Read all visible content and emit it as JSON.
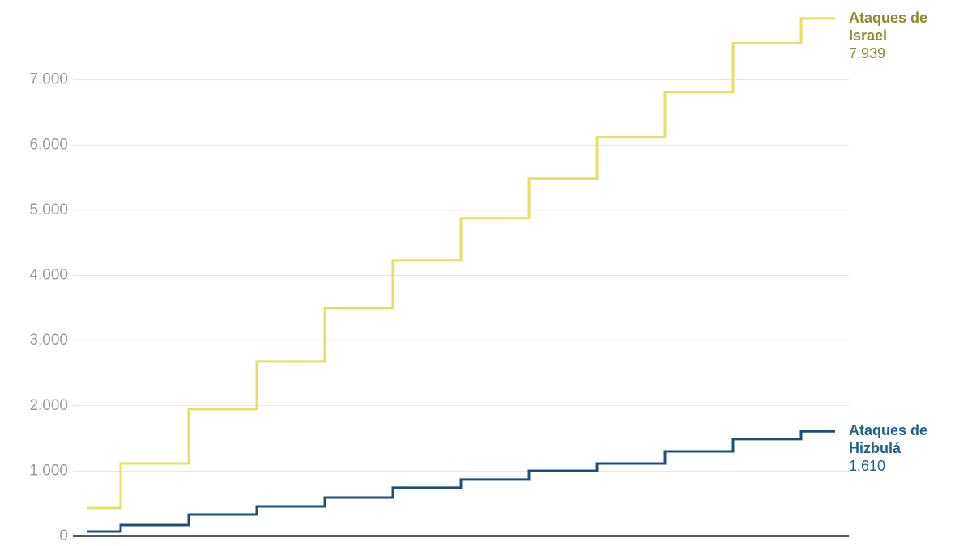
{
  "chart_data": {
    "type": "line",
    "step": "mid",
    "ylim": [
      0,
      8000
    ],
    "yticks": [
      0,
      {
        "value": 1000,
        "label": "1.000"
      },
      {
        "value": 2000,
        "label": "2.000"
      },
      {
        "value": 3000,
        "label": "3.000"
      },
      {
        "value": 4000,
        "label": "4.000"
      },
      {
        "value": 5000,
        "label": "5.000"
      },
      {
        "value": 6000,
        "label": "6.000"
      },
      {
        "value": 7000,
        "label": "7.000"
      }
    ],
    "grid": true,
    "series": [
      {
        "name": "Ataques de Israel",
        "color": "#e8df5c",
        "label_color": "#8c8a2e",
        "values": [
          434,
          1117,
          1949,
          2681,
          3500,
          4232,
          4878,
          5486,
          6119,
          6814,
          7559,
          7939
        ],
        "value_labels": [
          null,
          null,
          null,
          null,
          null,
          null,
          null,
          null,
          null,
          null,
          null,
          "7.939"
        ]
      },
      {
        "name": "Ataques de Hizbulá",
        "color": "#1c4f7c",
        "label_color": "#1f5f8f",
        "values": [
          74,
          174,
          335,
          459,
          596,
          745,
          869,
          1005,
          1117,
          1303,
          1490,
          1610
        ],
        "value_labels": [
          null,
          null,
          null,
          null,
          null,
          null,
          null,
          null,
          null,
          null,
          null,
          "1.610"
        ]
      }
    ]
  }
}
